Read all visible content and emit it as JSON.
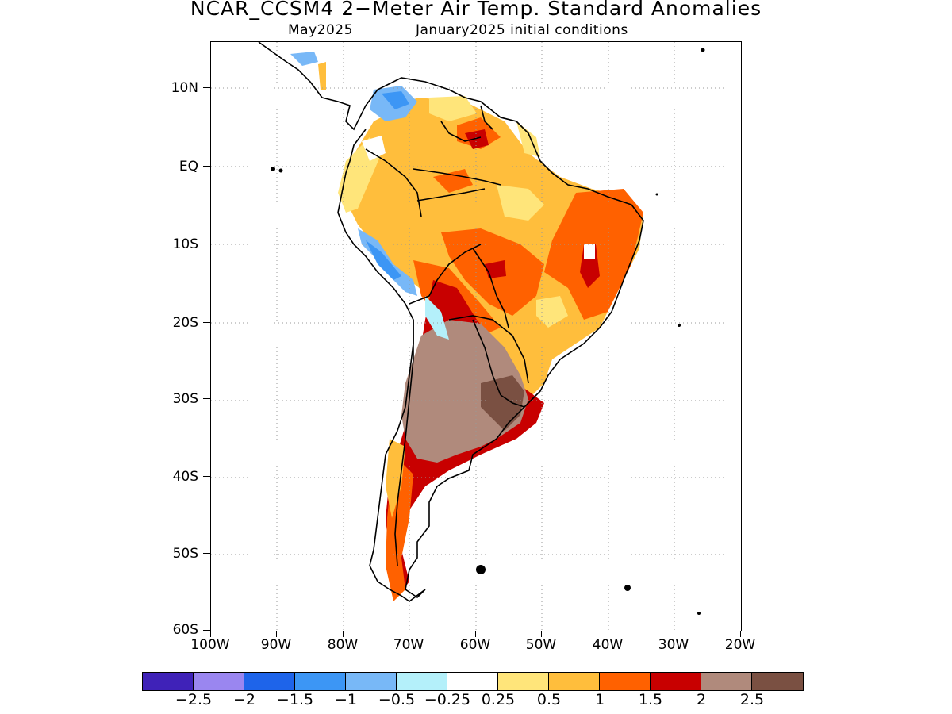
{
  "title": "NCAR_CCSM4 2−Meter Air Temp. Standard Anomalies",
  "subtitle_month": "May2025",
  "subtitle_init": "January2025 initial conditions",
  "map": {
    "region": "South America",
    "lon_range": [
      -100,
      -20
    ],
    "lat_range": [
      -60,
      15
    ],
    "lat_labels": [
      "10N",
      "EQ",
      "10S",
      "20S",
      "30S",
      "40S",
      "50S",
      "60S"
    ],
    "lon_labels": [
      "100W",
      "90W",
      "80W",
      "70W",
      "60W",
      "50W",
      "40W",
      "30W",
      "20W"
    ],
    "gridlines": "dotted"
  },
  "legend": {
    "colors": [
      "#3f22b8",
      "#9a86f0",
      "#1e64ea",
      "#3c96f5",
      "#78b8f7",
      "#b4f0fa",
      "#ffffff",
      "#ffe57a",
      "#ffbe3c",
      "#ff6100",
      "#c80000",
      "#b08a7c",
      "#7a5042"
    ],
    "labels": [
      "−2.5",
      "−2",
      "−1.5",
      "−1",
      "−0.5",
      "−0.25",
      "0.25",
      "0.5",
      "1",
      "1.5",
      "2",
      "2.5"
    ]
  }
}
